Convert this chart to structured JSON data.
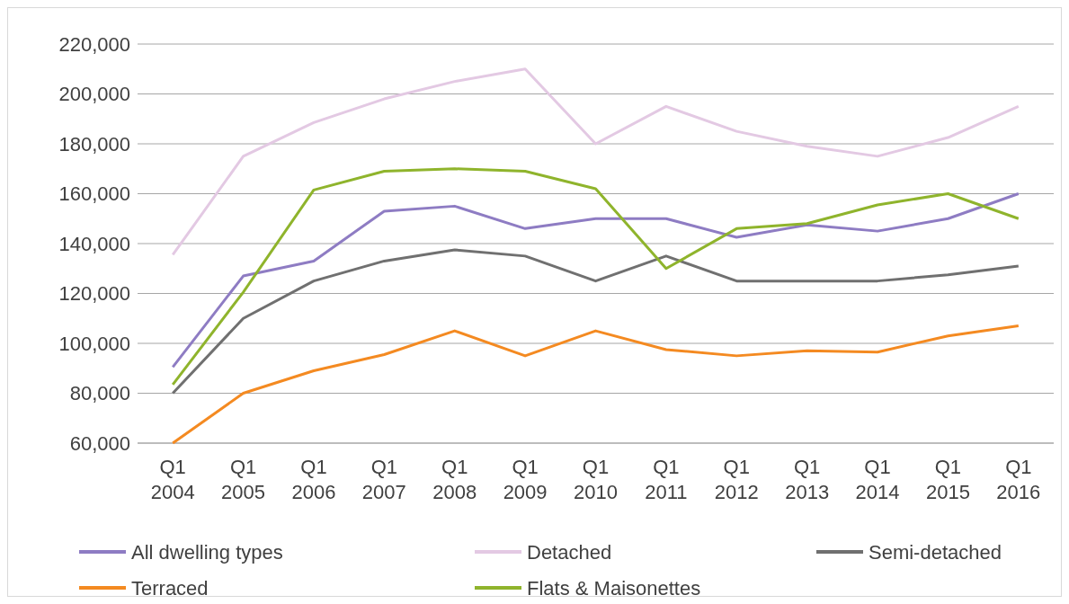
{
  "chart_data": {
    "type": "line",
    "categories": [
      "Q1\n2004",
      "Q1\n2005",
      "Q1\n2006",
      "Q1\n2007",
      "Q1\n2008",
      "Q1\n2009",
      "Q1\n2010",
      "Q1\n2011",
      "Q1\n2012",
      "Q1\n2013",
      "Q1\n2014",
      "Q1\n2015",
      "Q1\n2016"
    ],
    "ylim": [
      60000,
      220000
    ],
    "yticks": [
      {
        "value": 60000,
        "label": "60,000"
      },
      {
        "value": 80000,
        "label": "80,000"
      },
      {
        "value": 100000,
        "label": "100,000"
      },
      {
        "value": 120000,
        "label": "120,000"
      },
      {
        "value": 140000,
        "label": "140,000"
      },
      {
        "value": 160000,
        "label": "160,000"
      },
      {
        "value": 180000,
        "label": "180,000"
      },
      {
        "value": 200000,
        "label": "200,000"
      },
      {
        "value": 220000,
        "label": "220,000"
      }
    ],
    "grid": "y",
    "legend": "bottom",
    "marker": "none",
    "line_style": "solid",
    "series": [
      {
        "name": "All dwelling types",
        "color": "#8e7cc3",
        "values": [
          90500,
          127000,
          133000,
          153000,
          155000,
          146000,
          150000,
          150000,
          142500,
          147500,
          145000,
          150000,
          160000
        ]
      },
      {
        "name": "Detached",
        "color": "#e3c9e3",
        "values": [
          135500,
          175000,
          188500,
          198000,
          205000,
          210000,
          180000,
          195000,
          185000,
          179000,
          175000,
          182500,
          195000
        ]
      },
      {
        "name": "Semi-detached",
        "color": "#707070",
        "values": [
          80000,
          110000,
          125000,
          133000,
          137500,
          135000,
          125000,
          135000,
          125000,
          125000,
          125000,
          127500,
          131000
        ]
      },
      {
        "name": "Terraced",
        "color": "#f48a21",
        "values": [
          60000,
          80000,
          89000,
          95500,
          105000,
          95000,
          105000,
          97500,
          95000,
          97000,
          96500,
          103000,
          107000
        ]
      },
      {
        "name": "Flats & Maisonettes",
        "color": "#8fb42c",
        "values": [
          83500,
          120500,
          161500,
          169000,
          170000,
          169000,
          162000,
          130000,
          146000,
          148000,
          155500,
          160000,
          150000
        ]
      }
    ]
  }
}
